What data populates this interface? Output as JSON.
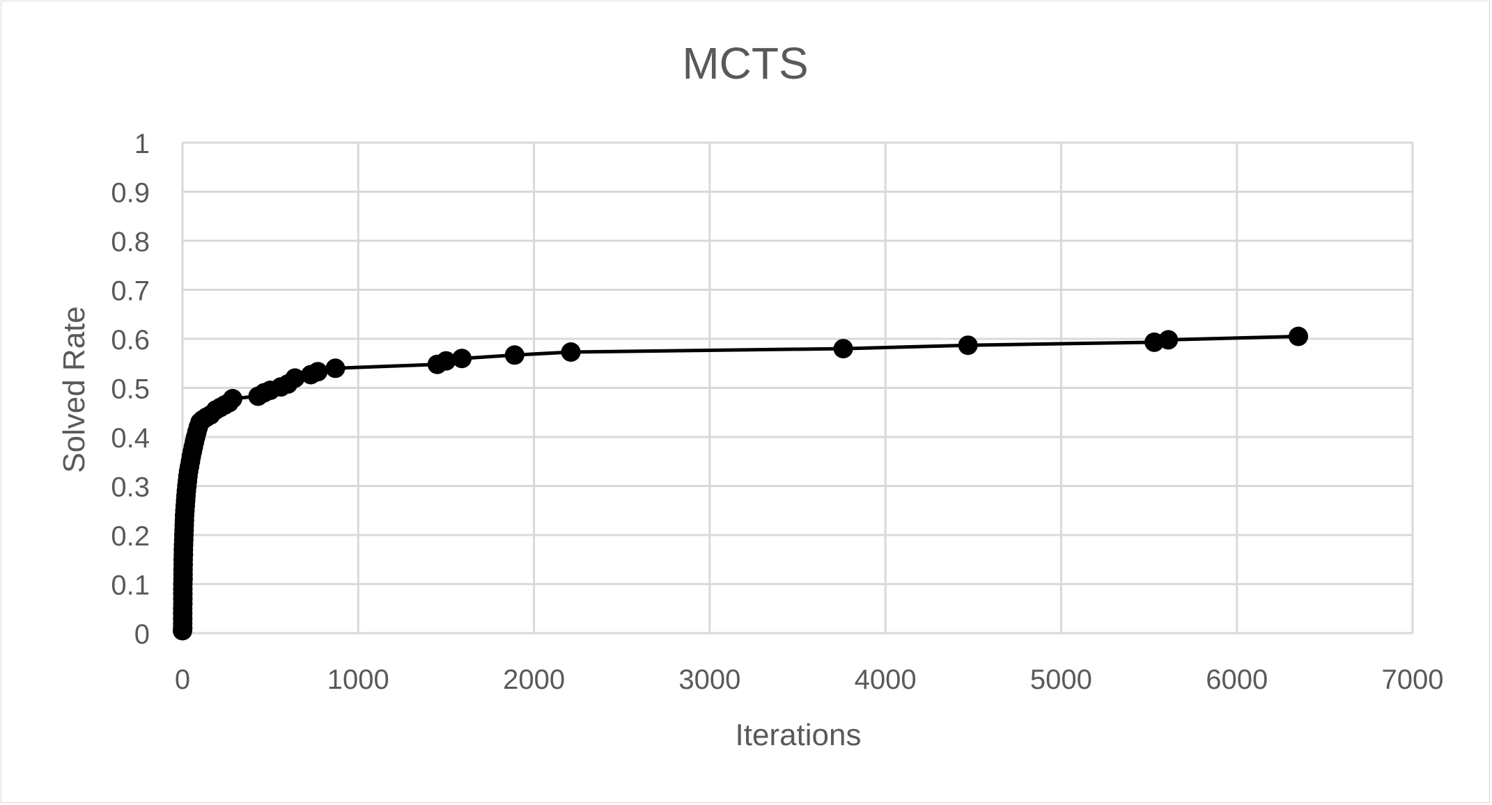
{
  "chart_data": {
    "type": "scatter",
    "title": "MCTS",
    "xlabel": "Iterations",
    "ylabel": "Solved Rate",
    "xlim": [
      0,
      7000
    ],
    "ylim": [
      0,
      1
    ],
    "x_ticks": [
      0,
      1000,
      2000,
      3000,
      4000,
      5000,
      6000,
      7000
    ],
    "y_ticks": [
      0,
      0.1,
      0.2,
      0.3,
      0.4,
      0.5,
      0.6,
      0.7,
      0.8,
      0.9,
      1
    ],
    "grid": true,
    "legend": "none",
    "line_color": "#000000",
    "marker_color": "#000000",
    "grid_color": "#d9d9d9",
    "text_color": "#595959",
    "series": [
      {
        "points": [
          [
            0,
            0.005
          ],
          [
            1,
            0.01
          ],
          [
            1,
            0.02
          ],
          [
            1,
            0.03
          ],
          [
            1,
            0.04
          ],
          [
            1,
            0.05
          ],
          [
            2,
            0.06
          ],
          [
            2,
            0.07
          ],
          [
            2,
            0.08
          ],
          [
            2,
            0.09
          ],
          [
            2,
            0.1
          ],
          [
            3,
            0.11
          ],
          [
            3,
            0.12
          ],
          [
            3,
            0.13
          ],
          [
            4,
            0.14
          ],
          [
            4,
            0.15
          ],
          [
            5,
            0.16
          ],
          [
            5,
            0.17
          ],
          [
            6,
            0.18
          ],
          [
            7,
            0.19
          ],
          [
            8,
            0.2
          ],
          [
            9,
            0.21
          ],
          [
            10,
            0.22
          ],
          [
            11,
            0.23
          ],
          [
            12,
            0.24
          ],
          [
            14,
            0.25
          ],
          [
            16,
            0.26
          ],
          [
            18,
            0.27
          ],
          [
            20,
            0.28
          ],
          [
            22,
            0.29
          ],
          [
            25,
            0.3
          ],
          [
            28,
            0.31
          ],
          [
            31,
            0.32
          ],
          [
            35,
            0.33
          ],
          [
            40,
            0.34
          ],
          [
            45,
            0.35
          ],
          [
            50,
            0.36
          ],
          [
            56,
            0.37
          ],
          [
            62,
            0.38
          ],
          [
            68,
            0.39
          ],
          [
            75,
            0.4
          ],
          [
            82,
            0.41
          ],
          [
            90,
            0.42
          ],
          [
            100,
            0.43
          ],
          [
            115,
            0.435
          ],
          [
            135,
            0.44
          ],
          [
            160,
            0.445
          ],
          [
            190,
            0.455
          ],
          [
            215,
            0.46
          ],
          [
            240,
            0.465
          ],
          [
            265,
            0.47
          ],
          [
            285,
            0.478
          ],
          [
            430,
            0.483
          ],
          [
            465,
            0.49
          ],
          [
            500,
            0.495
          ],
          [
            560,
            0.502
          ],
          [
            600,
            0.508
          ],
          [
            640,
            0.52
          ],
          [
            730,
            0.527
          ],
          [
            770,
            0.533
          ],
          [
            870,
            0.54
          ],
          [
            1450,
            0.548
          ],
          [
            1500,
            0.555
          ],
          [
            1590,
            0.56
          ],
          [
            1890,
            0.567
          ],
          [
            2210,
            0.573
          ],
          [
            3760,
            0.58
          ],
          [
            4470,
            0.587
          ],
          [
            5530,
            0.593
          ],
          [
            5610,
            0.598
          ],
          [
            6350,
            0.605
          ]
        ]
      }
    ]
  }
}
